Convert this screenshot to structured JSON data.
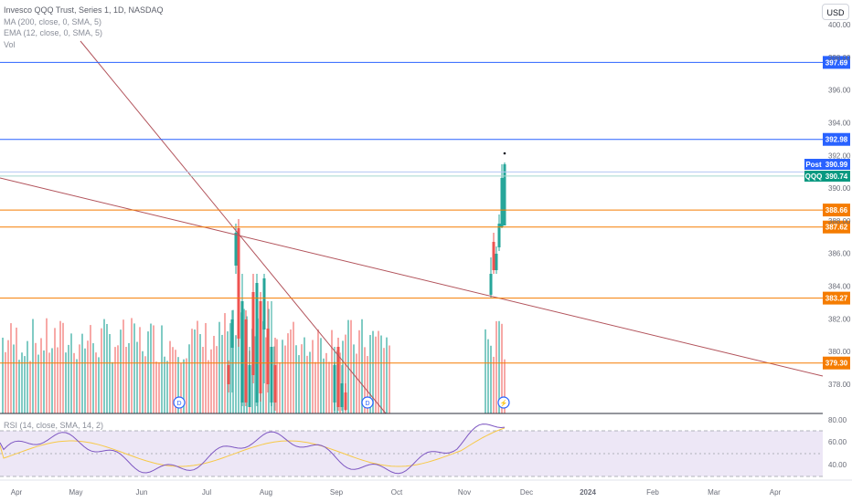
{
  "legend": {
    "title": "Invesco QQQ Trust, Series 1, 1D, NASDAQ",
    "ma": "MA (200, close, 0, SMA, 5)",
    "ema": "EMA (12, close, 0, SMA, 5)",
    "vol": "Vol"
  },
  "currency_button": "USD",
  "rsi_legend": "RSI (14, close, SMA, 14, 2)",
  "price_axis": {
    "ticks": [
      "400.00",
      "398.00",
      "396.00",
      "394.00",
      "392.00",
      "390.00",
      "388.00",
      "386.00",
      "384.00",
      "382.00",
      "380.00",
      "378.00"
    ]
  },
  "rsi_axis": {
    "ticks": [
      "80.00",
      "60.00",
      "40.00"
    ]
  },
  "time_axis": [
    "Apr",
    "May",
    "Jun",
    "Jul",
    "Aug",
    "Sep",
    "Oct",
    "Nov",
    "Dec",
    "2024",
    "Feb",
    "Mar",
    "Apr"
  ],
  "price_lines": [
    {
      "label": "397.69",
      "color": "#2962ff"
    },
    {
      "label": "392.98",
      "color": "#2962ff"
    },
    {
      "label": "388.66",
      "color": "#f57c00"
    },
    {
      "label": "387.62",
      "color": "#f57c00"
    },
    {
      "label": "383.27",
      "color": "#f57c00"
    },
    {
      "label": "379.30",
      "color": "#f57c00"
    }
  ],
  "badges": {
    "post_label": "Post",
    "post_value": "390.99",
    "post_color": "#2962ff",
    "ticker_label": "QQQ",
    "ticker_value": "390.74",
    "ticker_color": "#089981"
  },
  "event_markers": [
    {
      "label": "D"
    },
    {
      "label": "D"
    },
    {
      "label": "⚡"
    }
  ],
  "colors": {
    "up": "#26a69a",
    "down": "#ef5350",
    "vol_up": "#80cbc4",
    "vol_down": "#f7a9a7",
    "trendline": "#b2535b",
    "rsi_line": "#7e57c2",
    "rsi_ma": "#f7c948",
    "rsi_band": "#ede7f6"
  }
}
